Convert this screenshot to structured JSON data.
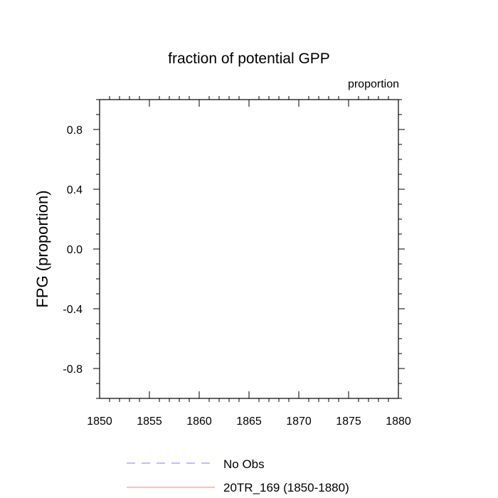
{
  "chart_data": {
    "type": "line",
    "title": "fraction of potential GPP",
    "units_label": "proportion",
    "ylabel": "FPG  (proportion)",
    "xlabel": "",
    "xlim": [
      1850,
      1880
    ],
    "ylim": [
      -1.0,
      1.0
    ],
    "x_ticks": [
      1850,
      1855,
      1860,
      1865,
      1870,
      1875,
      1880
    ],
    "y_ticks": [
      -0.8,
      -0.4,
      0.0,
      0.4,
      0.8
    ],
    "y_tick_labels": [
      "-0.8",
      "-0.4",
      "0.0",
      "0.4",
      "0.8"
    ],
    "grid": false,
    "legend_position": "bottom",
    "series": [
      {
        "name": "No Obs",
        "color": "#7f7fff",
        "dash": "dashed",
        "x": [],
        "y": []
      },
      {
        "name": "20TR_169 (1850-1880)",
        "color": "#ff7f7f",
        "dash": "solid",
        "x": [],
        "y": []
      }
    ]
  }
}
